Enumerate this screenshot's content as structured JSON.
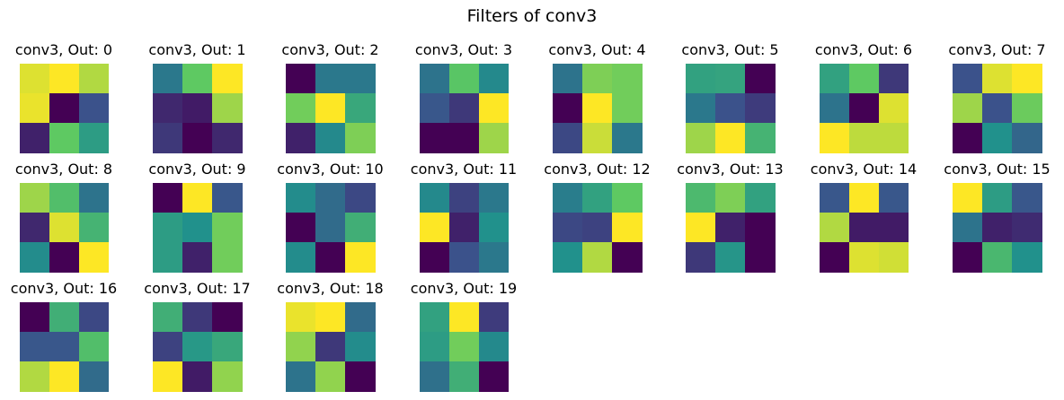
{
  "chart_data": {
    "type": "heatmap",
    "title": "Filters of conv3",
    "colormap": "viridis",
    "grid": false,
    "axes_visible": false,
    "layout_columns": 8,
    "panels": [
      {
        "title": "conv3, Out: 0",
        "values": [
          [
            0.95,
            1.0,
            0.88
          ],
          [
            0.97,
            0.0,
            0.25
          ],
          [
            0.1,
            0.75,
            0.55
          ]
        ]
      },
      {
        "title": "conv3, Out: 1",
        "values": [
          [
            0.4,
            0.75,
            1.0
          ],
          [
            0.12,
            0.08,
            0.85
          ],
          [
            0.17,
            0.0,
            0.12
          ]
        ]
      },
      {
        "title": "conv3, Out: 2",
        "values": [
          [
            0.0,
            0.4,
            0.4
          ],
          [
            0.78,
            1.0,
            0.6
          ],
          [
            0.1,
            0.47,
            0.8
          ]
        ]
      },
      {
        "title": "conv3, Out: 3",
        "values": [
          [
            0.38,
            0.73,
            0.47
          ],
          [
            0.27,
            0.17,
            1.0
          ],
          [
            0.0,
            0.0,
            0.85
          ]
        ]
      },
      {
        "title": "conv3, Out: 4",
        "values": [
          [
            0.38,
            0.8,
            0.78
          ],
          [
            0.0,
            1.0,
            0.78
          ],
          [
            0.22,
            0.92,
            0.4
          ]
        ]
      },
      {
        "title": "conv3, Out: 5",
        "values": [
          [
            0.57,
            0.58,
            0.0
          ],
          [
            0.4,
            0.25,
            0.18
          ],
          [
            0.85,
            1.0,
            0.65
          ]
        ]
      },
      {
        "title": "conv3, Out: 6",
        "values": [
          [
            0.57,
            0.75,
            0.17
          ],
          [
            0.38,
            0.0,
            0.95
          ],
          [
            1.0,
            0.9,
            0.9
          ]
        ]
      },
      {
        "title": "conv3, Out: 7",
        "values": [
          [
            0.25,
            0.95,
            1.0
          ],
          [
            0.85,
            0.25,
            0.77
          ],
          [
            0.0,
            0.5,
            0.33
          ]
        ]
      },
      {
        "title": "conv3, Out: 8",
        "values": [
          [
            0.85,
            0.7,
            0.38
          ],
          [
            0.12,
            0.95,
            0.65
          ],
          [
            0.48,
            0.0,
            1.0
          ]
        ]
      },
      {
        "title": "conv3, Out: 9",
        "values": [
          [
            0.0,
            1.0,
            0.27
          ],
          [
            0.55,
            0.5,
            0.78
          ],
          [
            0.55,
            0.1,
            0.78
          ]
        ]
      },
      {
        "title": "conv3, Out: 10",
        "values": [
          [
            0.48,
            0.35,
            0.22
          ],
          [
            0.0,
            0.35,
            0.63
          ],
          [
            0.48,
            0.0,
            1.0
          ]
        ]
      },
      {
        "title": "conv3, Out: 11",
        "values": [
          [
            0.47,
            0.2,
            0.4
          ],
          [
            1.0,
            0.1,
            0.5
          ],
          [
            0.0,
            0.25,
            0.4
          ]
        ]
      },
      {
        "title": "conv3, Out: 12",
        "values": [
          [
            0.42,
            0.57,
            0.75
          ],
          [
            0.22,
            0.2,
            1.0
          ],
          [
            0.5,
            0.88,
            0.0
          ]
        ]
      },
      {
        "title": "conv3, Out: 13",
        "values": [
          [
            0.68,
            0.8,
            0.57
          ],
          [
            1.0,
            0.1,
            0.0
          ],
          [
            0.17,
            0.52,
            0.0
          ]
        ]
      },
      {
        "title": "conv3, Out: 14",
        "values": [
          [
            0.27,
            1.0,
            0.27
          ],
          [
            0.88,
            0.08,
            0.08
          ],
          [
            0.0,
            0.95,
            0.93
          ]
        ]
      },
      {
        "title": "conv3, Out: 15",
        "values": [
          [
            1.0,
            0.55,
            0.27
          ],
          [
            0.38,
            0.1,
            0.13
          ],
          [
            0.0,
            0.67,
            0.5
          ]
        ]
      },
      {
        "title": "conv3, Out: 16",
        "values": [
          [
            0.0,
            0.63,
            0.22
          ],
          [
            0.27,
            0.27,
            0.7
          ],
          [
            0.88,
            1.0,
            0.35
          ]
        ]
      },
      {
        "title": "conv3, Out: 17",
        "values": [
          [
            0.63,
            0.17,
            0.0
          ],
          [
            0.2,
            0.53,
            0.6
          ],
          [
            1.0,
            0.08,
            0.83
          ]
        ]
      },
      {
        "title": "conv3, Out: 18",
        "values": [
          [
            0.97,
            1.0,
            0.35
          ],
          [
            0.83,
            0.17,
            0.48
          ],
          [
            0.38,
            0.83,
            0.0
          ]
        ]
      },
      {
        "title": "conv3, Out: 19",
        "values": [
          [
            0.57,
            1.0,
            0.18
          ],
          [
            0.55,
            0.78,
            0.47
          ],
          [
            0.37,
            0.63,
            0.0
          ]
        ]
      }
    ]
  }
}
